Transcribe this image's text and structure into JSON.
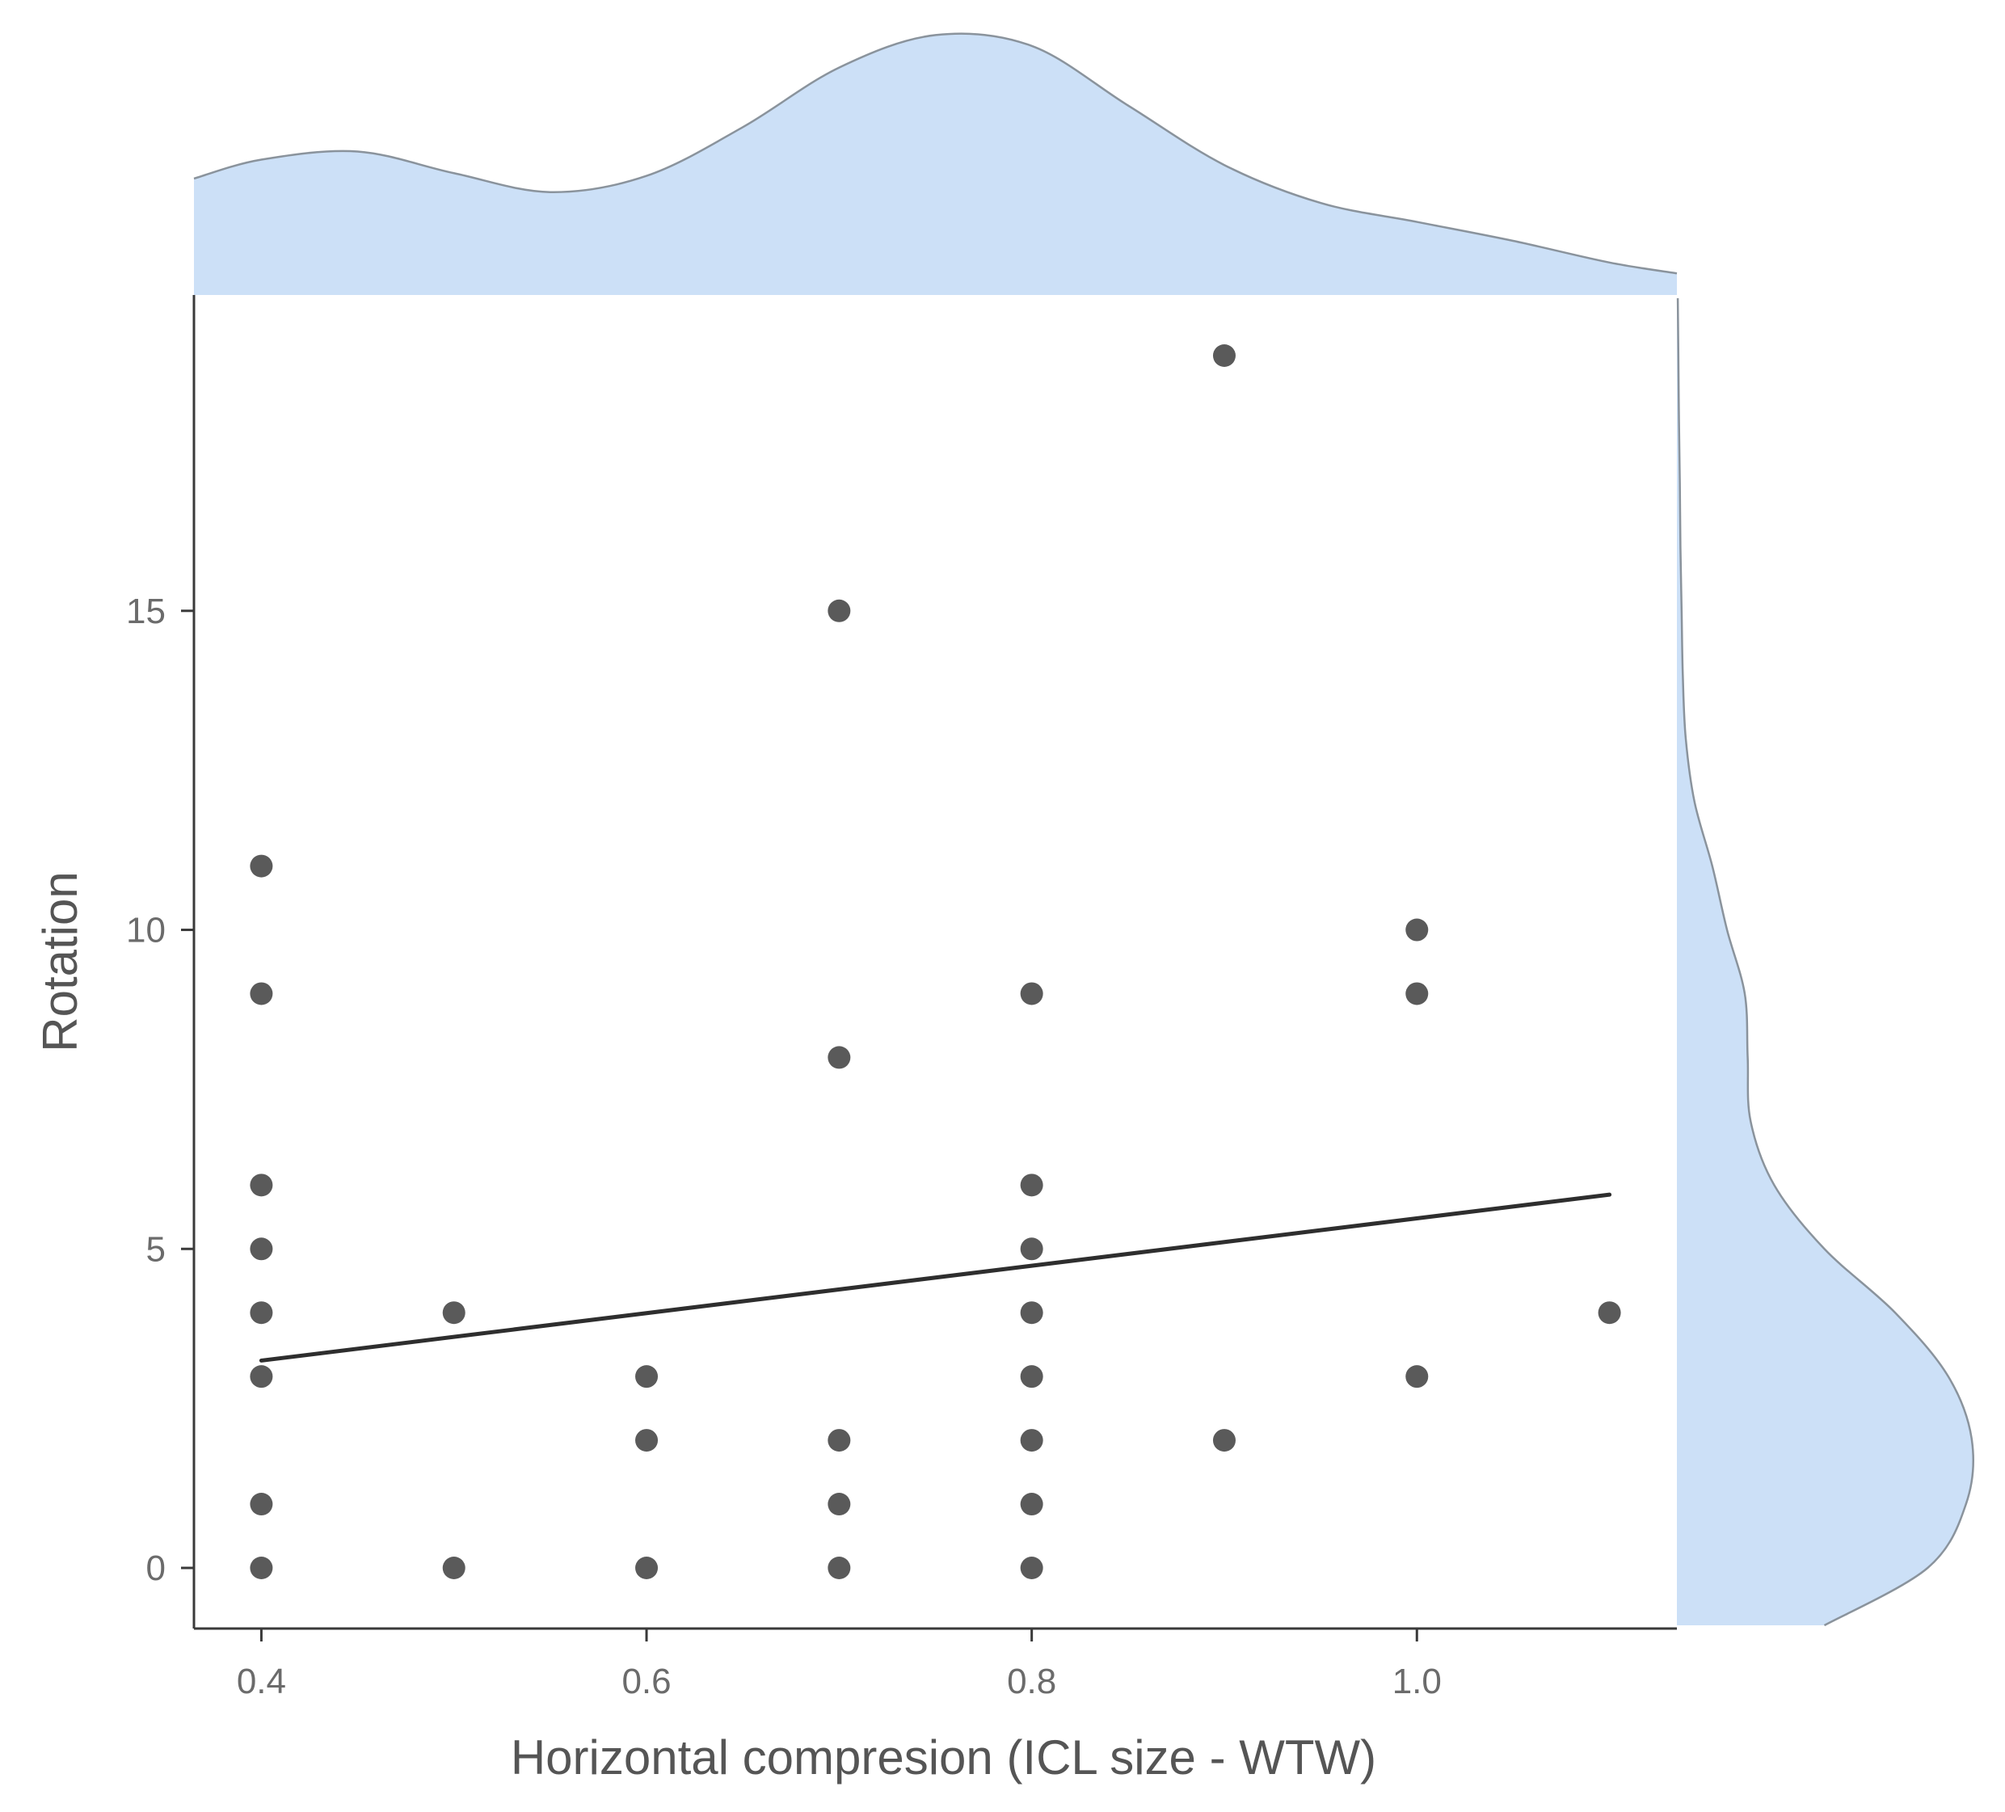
{
  "chart_data": {
    "type": "scatter",
    "xlabel": "Horizontal compresion (ICL size - WTW)",
    "ylabel": "Rotation",
    "xlim": [
      0.365,
      1.135
    ],
    "ylim": [
      -0.95,
      19.95
    ],
    "x_ticks": [
      0.4,
      0.6,
      0.8,
      1.0
    ],
    "x_tick_labels": [
      "0.4",
      "0.6",
      "0.8",
      "1.0"
    ],
    "y_ticks": [
      0,
      5,
      10,
      15
    ],
    "y_tick_labels": [
      "0",
      "5",
      "10",
      "15"
    ],
    "grid": false,
    "points": [
      {
        "x": 0.4,
        "y": 11
      },
      {
        "x": 0.4,
        "y": 9
      },
      {
        "x": 0.4,
        "y": 6
      },
      {
        "x": 0.4,
        "y": 5
      },
      {
        "x": 0.4,
        "y": 4
      },
      {
        "x": 0.4,
        "y": 3
      },
      {
        "x": 0.4,
        "y": 1
      },
      {
        "x": 0.4,
        "y": 0
      },
      {
        "x": 0.5,
        "y": 4
      },
      {
        "x": 0.5,
        "y": 0
      },
      {
        "x": 0.6,
        "y": 3
      },
      {
        "x": 0.6,
        "y": 2
      },
      {
        "x": 0.6,
        "y": 0
      },
      {
        "x": 0.7,
        "y": 15
      },
      {
        "x": 0.7,
        "y": 8
      },
      {
        "x": 0.7,
        "y": 2
      },
      {
        "x": 0.7,
        "y": 1
      },
      {
        "x": 0.7,
        "y": 0
      },
      {
        "x": 0.8,
        "y": 9
      },
      {
        "x": 0.8,
        "y": 6
      },
      {
        "x": 0.8,
        "y": 5
      },
      {
        "x": 0.8,
        "y": 4
      },
      {
        "x": 0.8,
        "y": 3
      },
      {
        "x": 0.8,
        "y": 2
      },
      {
        "x": 0.8,
        "y": 1
      },
      {
        "x": 0.8,
        "y": 0
      },
      {
        "x": 0.9,
        "y": 19
      },
      {
        "x": 0.9,
        "y": 2
      },
      {
        "x": 1.0,
        "y": 10
      },
      {
        "x": 1.0,
        "y": 9
      },
      {
        "x": 1.0,
        "y": 3
      },
      {
        "x": 1.1,
        "y": 4
      }
    ],
    "regression_line": {
      "x": [
        0.4,
        1.1
      ],
      "y": [
        3.25,
        5.85
      ]
    },
    "marginal_x_density": {
      "x": [
        0.365,
        0.4,
        0.45,
        0.5,
        0.55,
        0.6,
        0.65,
        0.7,
        0.75,
        0.8,
        0.85,
        0.9,
        0.95,
        1.0,
        1.05,
        1.1,
        1.135
      ],
      "density": [
        0.43,
        0.5,
        0.53,
        0.45,
        0.38,
        0.44,
        0.62,
        0.84,
        0.96,
        0.92,
        0.7,
        0.48,
        0.34,
        0.27,
        0.2,
        0.12,
        0.08
      ]
    },
    "marginal_y_density": {
      "y": [
        -0.9,
        0,
        1,
        2,
        3,
        4,
        5,
        6,
        7,
        8,
        9,
        10,
        11,
        12,
        13,
        14,
        15,
        16,
        17,
        18,
        19,
        19.9
      ],
      "density": [
        0.5,
        0.85,
        0.98,
        1.0,
        0.92,
        0.74,
        0.5,
        0.33,
        0.25,
        0.24,
        0.23,
        0.17,
        0.12,
        0.06,
        0.03,
        0.02,
        0.016,
        0.012,
        0.01,
        0.007,
        0.005,
        0.003
      ]
    },
    "colors": {
      "point": "#3d3d3d",
      "regression": "#2e2e2e",
      "density_fill": "#cce0f7",
      "density_stroke": "#8a939c",
      "axis": "#3a3a3a"
    }
  }
}
